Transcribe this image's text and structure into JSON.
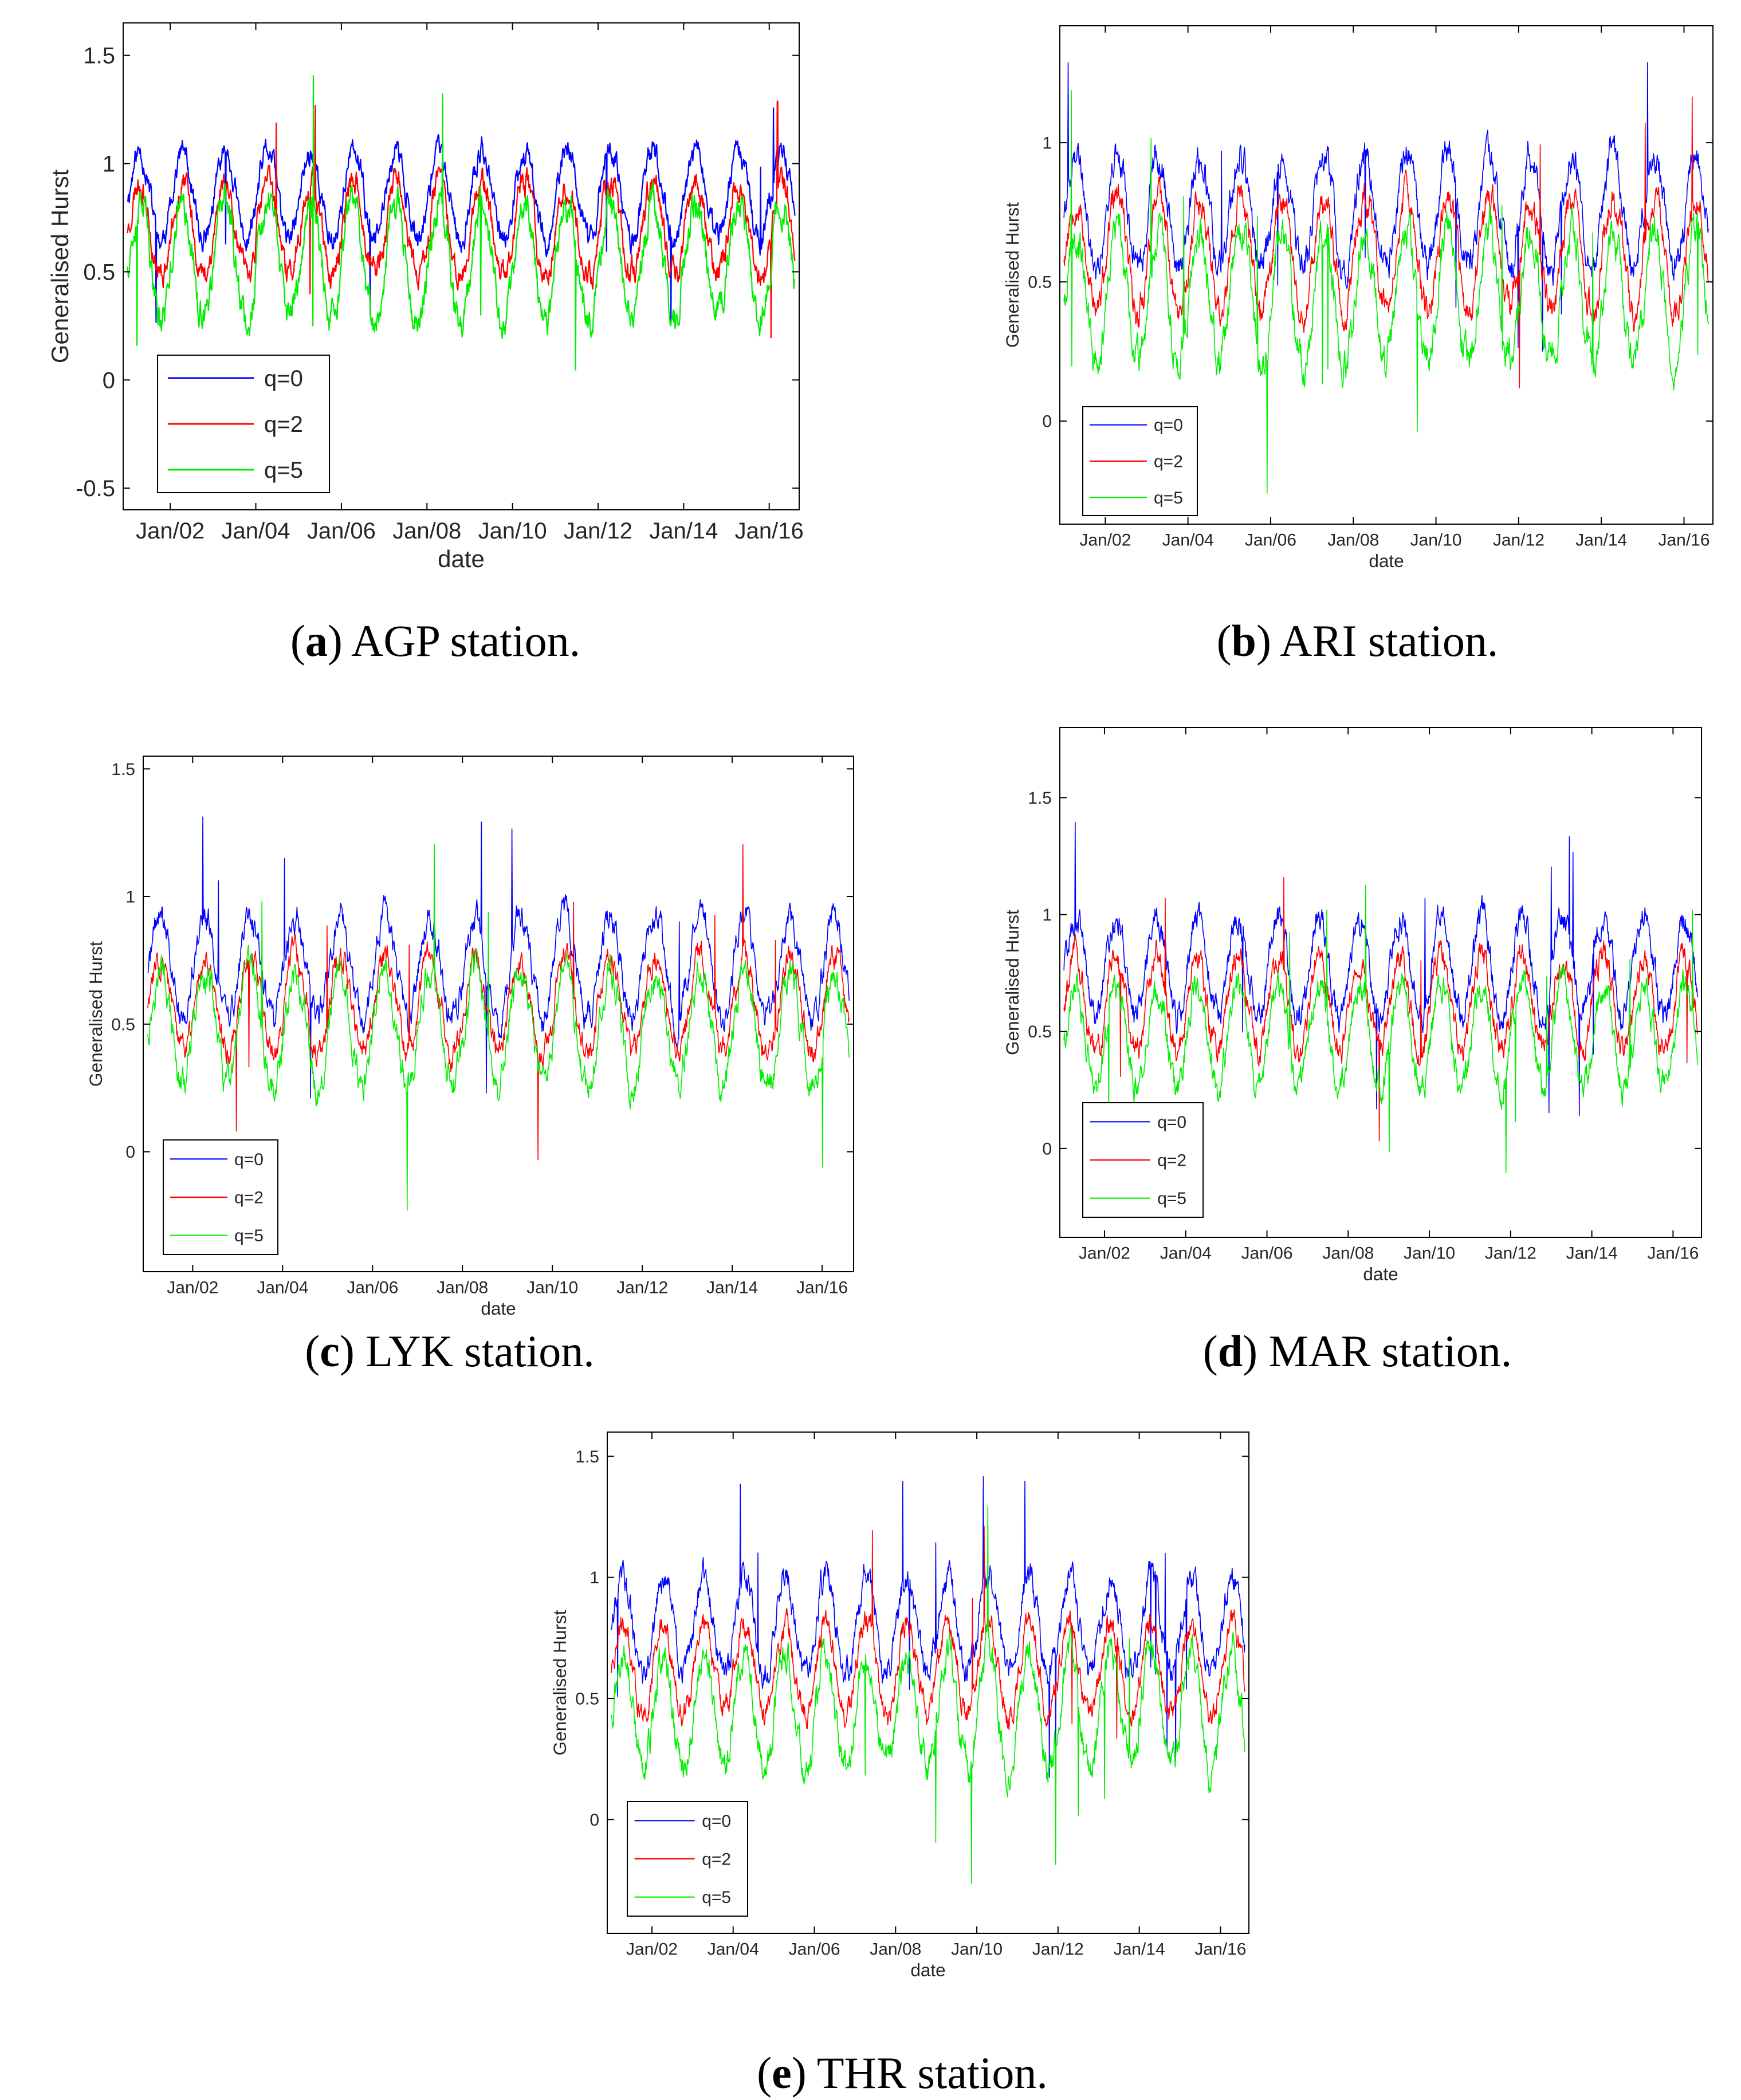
{
  "colors": {
    "q0": "#0000ff",
    "q2": "#ff0000",
    "q5": "#00ee00",
    "axis": "#000000",
    "tick": "#262626"
  },
  "chart_data": [
    {
      "type": "line",
      "panel": "a",
      "caption_letter": "a",
      "caption_text": "AGP station.",
      "xlabel": "date",
      "ylabel": "Generalised Hurst",
      "xlim": [
        2000.9,
        2016.7
      ],
      "ylim": [
        -0.6,
        1.65
      ],
      "yticks": [
        -0.5,
        0,
        0.5,
        1,
        1.5
      ],
      "yticklabels": [
        "-0.5",
        "0",
        "0.5",
        "1",
        "1.5"
      ],
      "xticks": [
        2002,
        2004,
        2006,
        2008,
        2010,
        2012,
        2014,
        2016
      ],
      "xticklabels": [
        "Jan/02",
        "Jan/04",
        "Jan/06",
        "Jan/08",
        "Jan/10",
        "Jan/12",
        "Jan/14",
        "Jan/16"
      ],
      "legend_position": "lower-left",
      "legend": [
        "q=0",
        "q=2",
        "q=5"
      ],
      "series": [
        {
          "name": "q=0",
          "color": "#0000ff",
          "base": 0.85,
          "amp": 0.3,
          "seed": 11
        },
        {
          "name": "q=2",
          "color": "#ff0000",
          "base": 0.7,
          "amp": 0.32,
          "seed": 23
        },
        {
          "name": "q=5",
          "color": "#00ee00",
          "base": 0.55,
          "amp": 0.4,
          "seed": 37
        }
      ]
    },
    {
      "type": "line",
      "panel": "b",
      "caption_letter": "b",
      "caption_text": "ARI station.",
      "xlabel": "date",
      "ylabel": "Generalised Hurst",
      "xlim": [
        2000.9,
        2016.7
      ],
      "ylim": [
        -0.37,
        1.42
      ],
      "yticks": [
        0,
        0.5,
        1
      ],
      "yticklabels": [
        "0",
        "0.5",
        "1"
      ],
      "xticks": [
        2002,
        2004,
        2006,
        2008,
        2010,
        2012,
        2014,
        2016
      ],
      "xticklabels": [
        "Jan/02",
        "Jan/04",
        "Jan/06",
        "Jan/08",
        "Jan/10",
        "Jan/12",
        "Jan/14",
        "Jan/16"
      ],
      "legend_position": "lower-left",
      "legend": [
        "q=0",
        "q=2",
        "q=5"
      ],
      "series": [
        {
          "name": "q=0",
          "color": "#0000ff",
          "base": 0.75,
          "amp": 0.3,
          "seed": 41
        },
        {
          "name": "q=2",
          "color": "#ff0000",
          "base": 0.6,
          "amp": 0.3,
          "seed": 53
        },
        {
          "name": "q=5",
          "color": "#00ee00",
          "base": 0.45,
          "amp": 0.35,
          "seed": 67
        }
      ]
    },
    {
      "type": "line",
      "panel": "c",
      "caption_letter": "c",
      "caption_text": "LYK station.",
      "xlabel": "date",
      "ylabel": "Generalised Hurst",
      "xlim": [
        2000.9,
        2016.7
      ],
      "ylim": [
        -0.47,
        1.55
      ],
      "yticks": [
        0,
        0.5,
        1,
        1.5
      ],
      "yticklabels": [
        "0",
        "0.5",
        "1",
        "1.5"
      ],
      "xticks": [
        2002,
        2004,
        2006,
        2008,
        2010,
        2012,
        2014,
        2016
      ],
      "xticklabels": [
        "Jan/02",
        "Jan/04",
        "Jan/06",
        "Jan/08",
        "Jan/10",
        "Jan/12",
        "Jan/14",
        "Jan/16"
      ],
      "legend_position": "lower-left",
      "legend": [
        "q=0",
        "q=2",
        "q=5"
      ],
      "series": [
        {
          "name": "q=0",
          "color": "#0000ff",
          "base": 0.72,
          "amp": 0.3,
          "seed": 71
        },
        {
          "name": "q=2",
          "color": "#ff0000",
          "base": 0.58,
          "amp": 0.28,
          "seed": 83
        },
        {
          "name": "q=5",
          "color": "#00ee00",
          "base": 0.48,
          "amp": 0.33,
          "seed": 97
        }
      ]
    },
    {
      "type": "line",
      "panel": "d",
      "caption_letter": "d",
      "caption_text": "MAR station.",
      "xlabel": "date",
      "ylabel": "Generalised Hurst",
      "xlim": [
        2000.9,
        2016.7
      ],
      "ylim": [
        -0.38,
        1.8
      ],
      "yticks": [
        0,
        0.5,
        1,
        1.5
      ],
      "yticklabels": [
        "0",
        "0.5",
        "1",
        "1.5"
      ],
      "xticks": [
        2002,
        2004,
        2006,
        2008,
        2010,
        2012,
        2014,
        2016
      ],
      "xticklabels": [
        "Jan/02",
        "Jan/04",
        "Jan/06",
        "Jan/08",
        "Jan/10",
        "Jan/12",
        "Jan/14",
        "Jan/16"
      ],
      "legend_position": "lower-left",
      "legend": [
        "q=0",
        "q=2",
        "q=5"
      ],
      "series": [
        {
          "name": "q=0",
          "color": "#0000ff",
          "base": 0.78,
          "amp": 0.32,
          "seed": 101
        },
        {
          "name": "q=2",
          "color": "#ff0000",
          "base": 0.62,
          "amp": 0.3,
          "seed": 113
        },
        {
          "name": "q=5",
          "color": "#00ee00",
          "base": 0.48,
          "amp": 0.32,
          "seed": 127
        }
      ]
    },
    {
      "type": "line",
      "panel": "e",
      "caption_letter": "e",
      "caption_text": "THR station.",
      "xlabel": "date",
      "ylabel": "Generalised Hurst",
      "xlim": [
        2000.9,
        2016.7
      ],
      "ylim": [
        -0.47,
        1.6
      ],
      "yticks": [
        0,
        0.5,
        1,
        1.5
      ],
      "yticklabels": [
        "0",
        "0.5",
        "1",
        "1.5"
      ],
      "xticks": [
        2002,
        2004,
        2006,
        2008,
        2010,
        2012,
        2014,
        2016
      ],
      "xticklabels": [
        "Jan/02",
        "Jan/04",
        "Jan/06",
        "Jan/08",
        "Jan/10",
        "Jan/12",
        "Jan/14",
        "Jan/16"
      ],
      "legend_position": "lower-left",
      "legend": [
        "q=0",
        "q=2",
        "q=5"
      ],
      "series": [
        {
          "name": "q=0",
          "color": "#0000ff",
          "base": 0.8,
          "amp": 0.3,
          "seed": 131
        },
        {
          "name": "q=2",
          "color": "#ff0000",
          "base": 0.62,
          "amp": 0.28,
          "seed": 149
        },
        {
          "name": "q=5",
          "color": "#00ee00",
          "base": 0.45,
          "amp": 0.35,
          "seed": 157
        }
      ]
    }
  ]
}
